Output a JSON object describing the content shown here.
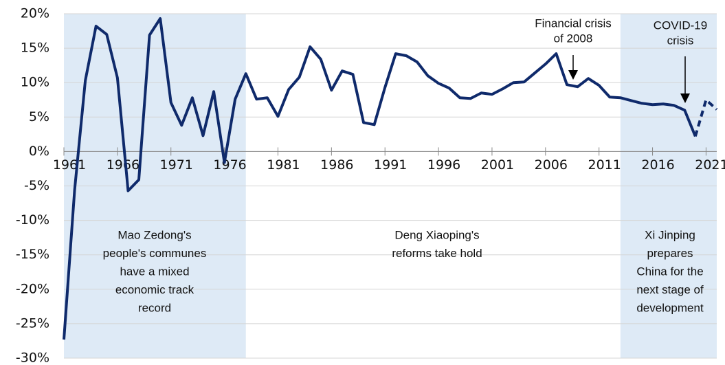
{
  "chart_data": {
    "type": "line",
    "x": [
      1961,
      1962,
      1963,
      1964,
      1965,
      1966,
      1967,
      1968,
      1969,
      1970,
      1971,
      1972,
      1973,
      1974,
      1975,
      1976,
      1977,
      1978,
      1979,
      1980,
      1981,
      1982,
      1983,
      1984,
      1985,
      1986,
      1987,
      1988,
      1989,
      1990,
      1991,
      1992,
      1993,
      1994,
      1995,
      1996,
      1997,
      1998,
      1999,
      2000,
      2001,
      2002,
      2003,
      2004,
      2005,
      2006,
      2007,
      2008,
      2009,
      2010,
      2011,
      2012,
      2013,
      2014,
      2015,
      2016,
      2017,
      2018,
      2019,
      2020,
      2021,
      2022
    ],
    "series": [
      {
        "color": "#0f2a6b",
        "dashed": false,
        "values": [
          -27.3,
          -5.6,
          10.3,
          18.2,
          17.0,
          10.7,
          -5.7,
          -4.1,
          16.9,
          19.3,
          7.1,
          3.8,
          7.8,
          2.3,
          8.7,
          -1.6,
          7.6,
          11.3,
          7.6,
          7.8,
          5.1,
          9.0,
          10.8,
          15.2,
          13.4,
          8.9,
          11.7,
          11.2,
          4.2,
          3.9,
          9.3,
          14.2,
          13.9,
          13.0,
          11.0,
          9.9,
          9.2,
          7.8,
          7.7,
          8.5,
          8.3,
          9.1,
          10.0,
          10.1,
          11.4,
          12.7,
          14.2,
          9.7,
          9.4,
          10.6,
          9.6,
          7.9,
          7.8,
          7.4,
          7.0,
          6.8,
          6.9,
          6.7,
          6.0,
          2.2,
          null,
          null
        ]
      },
      {
        "color": "#0f2a6b",
        "dashed": true,
        "values": [
          null,
          null,
          null,
          null,
          null,
          null,
          null,
          null,
          null,
          null,
          null,
          null,
          null,
          null,
          null,
          null,
          null,
          null,
          null,
          null,
          null,
          null,
          null,
          null,
          null,
          null,
          null,
          null,
          null,
          null,
          null,
          null,
          null,
          null,
          null,
          null,
          null,
          null,
          null,
          null,
          null,
          null,
          null,
          null,
          null,
          null,
          null,
          null,
          null,
          null,
          null,
          null,
          null,
          null,
          null,
          null,
          null,
          null,
          null,
          2.2,
          7.5,
          6.1
        ]
      }
    ],
    "xlim": [
      1961,
      2022
    ],
    "xticks": [
      1961,
      1966,
      1971,
      1976,
      1981,
      1986,
      1991,
      1996,
      2001,
      2006,
      2011,
      2016,
      2021
    ],
    "ylim": [
      -30,
      20
    ],
    "yticks": [
      {
        "value": 20,
        "label": "20%"
      },
      {
        "value": 15,
        "label": "15%"
      },
      {
        "value": 10,
        "label": "10%"
      },
      {
        "value": 5,
        "label": "5%"
      },
      {
        "value": 0,
        "label": "0%"
      },
      {
        "value": -5,
        "label": "-5%"
      },
      {
        "value": -10,
        "label": "-10%"
      },
      {
        "value": -15,
        "label": "-15%"
      },
      {
        "value": -20,
        "label": "-20%"
      },
      {
        "value": -25,
        "label": "-25%"
      },
      {
        "value": -30,
        "label": "-30%"
      }
    ],
    "grid": true,
    "shaded_ranges": [
      [
        1961,
        1978
      ],
      [
        2013,
        2022
      ]
    ],
    "shade_color": "#deeaf6",
    "annotations": [
      {
        "lines": [
          "Financial crisis",
          "of 2008"
        ]
      },
      {
        "lines": [
          "COVID-19",
          "crisis"
        ]
      }
    ],
    "region_labels": [
      {
        "lines": [
          "Mao Zedong's",
          "people's communes",
          "have a mixed",
          "economic track",
          "record"
        ]
      },
      {
        "lines": [
          "Deng Xiaoping's",
          "reforms take hold"
        ]
      },
      {
        "lines": [
          "Xi Jinping",
          "prepares",
          "China for the",
          "next stage of",
          "development"
        ]
      }
    ]
  }
}
